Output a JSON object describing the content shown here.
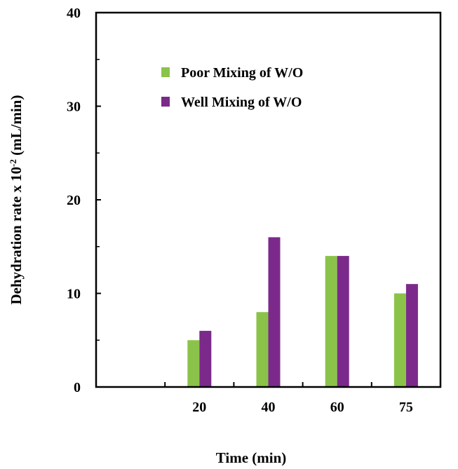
{
  "chart_data": {
    "type": "bar",
    "title": "",
    "xlabel": "Time (min)",
    "ylabel_main": "Dehydration rate x 10",
    "ylabel_exp": "-2",
    "ylabel_unit": " (mL/min)",
    "categories": [
      "20",
      "40",
      "60",
      "75"
    ],
    "series": [
      {
        "name": "Poor Mixing of W/O",
        "values": [
          5,
          8,
          14,
          10
        ],
        "color": "#8BC34A"
      },
      {
        "name": "Well Mixing of W/O",
        "values": [
          6,
          16,
          14,
          11
        ],
        "color": "#7B2A8B"
      }
    ],
    "ylim": [
      0,
      40
    ],
    "yticks": [
      "0",
      "10",
      "20",
      "30",
      "40"
    ],
    "legend_position": "top-left inside",
    "grid": false
  }
}
